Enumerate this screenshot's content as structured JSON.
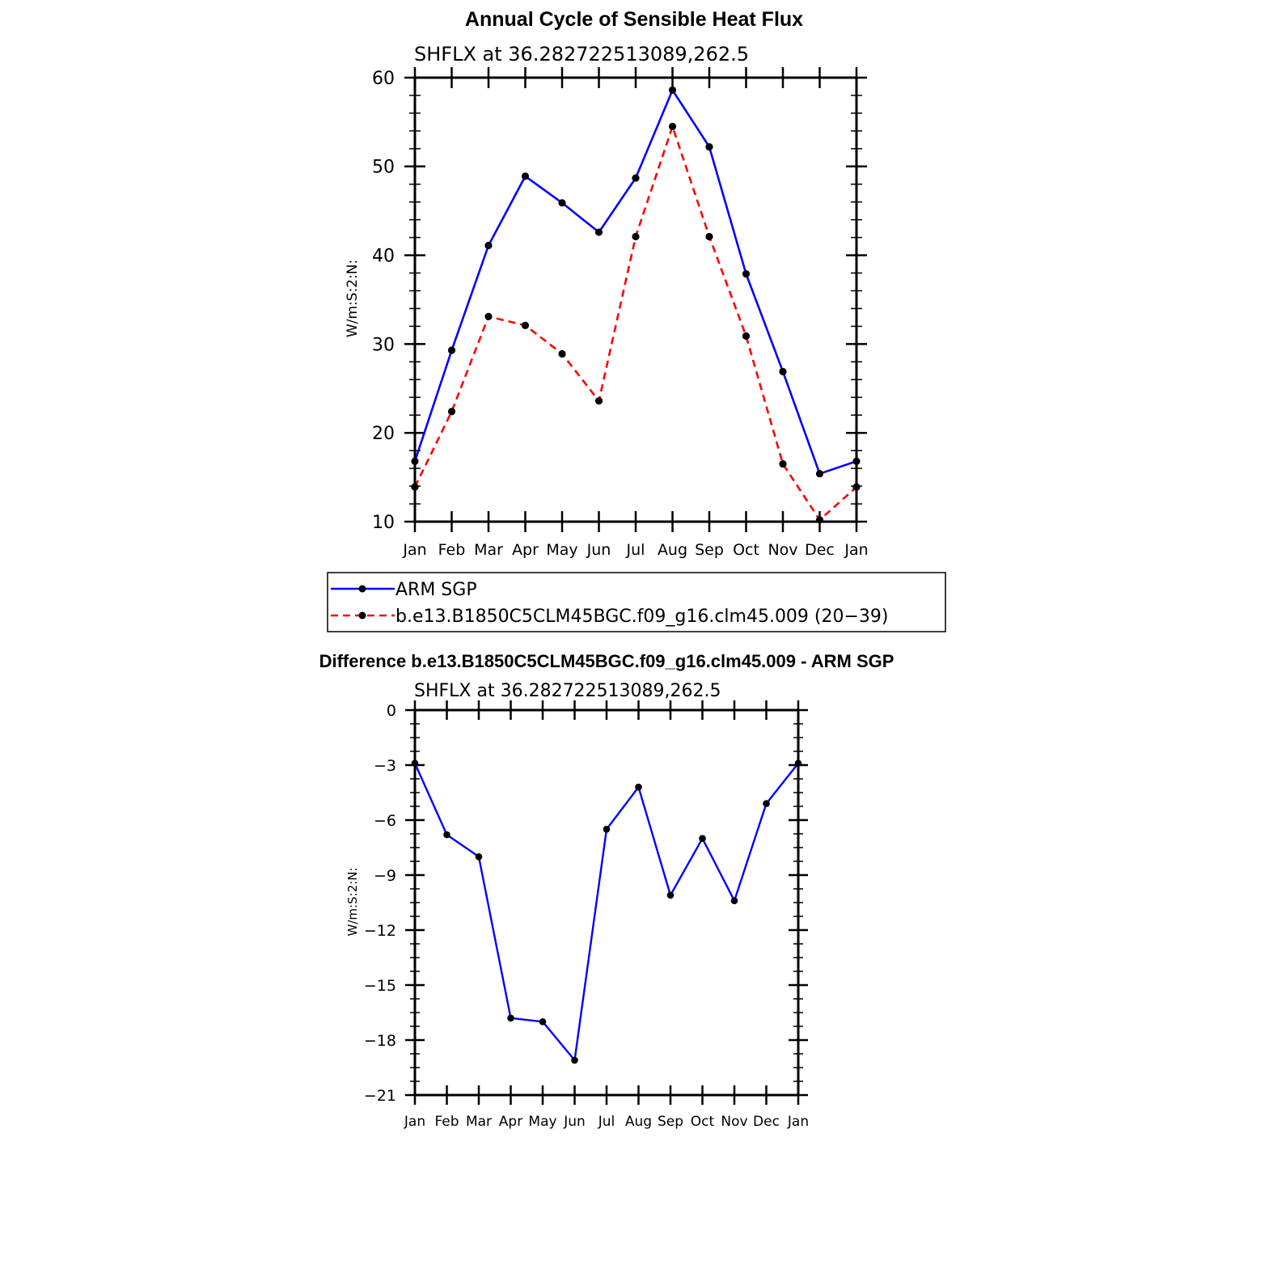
{
  "chart_data": [
    {
      "type": "line",
      "title": "Annual Cycle of Sensible Heat Flux",
      "subtitle": "SHFLX at 36.282722513089,262.5",
      "xlabel": "",
      "ylabel": "W/m:S:2:N:",
      "categories": [
        "Jan",
        "Feb",
        "Mar",
        "Apr",
        "May",
        "Jun",
        "Jul",
        "Aug",
        "Sep",
        "Oct",
        "Nov",
        "Dec",
        "Jan"
      ],
      "ylim": [
        10,
        60
      ],
      "yticks": [
        10,
        20,
        30,
        40,
        50,
        60
      ],
      "grid": false,
      "legend_position": "below",
      "series": [
        {
          "name": "ARM SGP",
          "color": "#0000ff",
          "dash": "solid",
          "values": [
            16.8,
            29.3,
            41.1,
            48.9,
            45.9,
            42.6,
            48.7,
            58.6,
            52.2,
            37.9,
            26.9,
            15.4,
            16.8
          ]
        },
        {
          "name": "b.e13.B1850C5CLM45BGC.f09_g16.clm45.009 (20−39)",
          "color": "#ff0000",
          "dash": "dashed",
          "values": [
            13.9,
            22.4,
            33.1,
            32.1,
            28.9,
            23.6,
            42.1,
            54.5,
            42.1,
            30.9,
            16.5,
            10.2,
            13.9
          ]
        }
      ]
    },
    {
      "type": "line",
      "title": "Difference b.e13.B1850C5CLM45BGC.f09_g16.clm45.009 - ARM SGP",
      "subtitle": "SHFLX at 36.282722513089,262.5",
      "xlabel": "",
      "ylabel": "W/m:S:2:N:",
      "categories": [
        "Jan",
        "Feb",
        "Mar",
        "Apr",
        "May",
        "Jun",
        "Jul",
        "Aug",
        "Sep",
        "Oct",
        "Nov",
        "Dec",
        "Jan"
      ],
      "ylim": [
        -21,
        0
      ],
      "yticks": [
        "0",
        "−3",
        "−6",
        "−9",
        "−12",
        "−15",
        "−18",
        "−21"
      ],
      "grid": false,
      "series": [
        {
          "color": "#0000ff",
          "dash": "solid",
          "values": [
            -2.9,
            -6.8,
            -8.0,
            -16.8,
            -17.0,
            -19.1,
            -6.5,
            -4.2,
            -10.1,
            -7.0,
            -10.4,
            -5.1,
            -2.9
          ]
        }
      ]
    }
  ]
}
